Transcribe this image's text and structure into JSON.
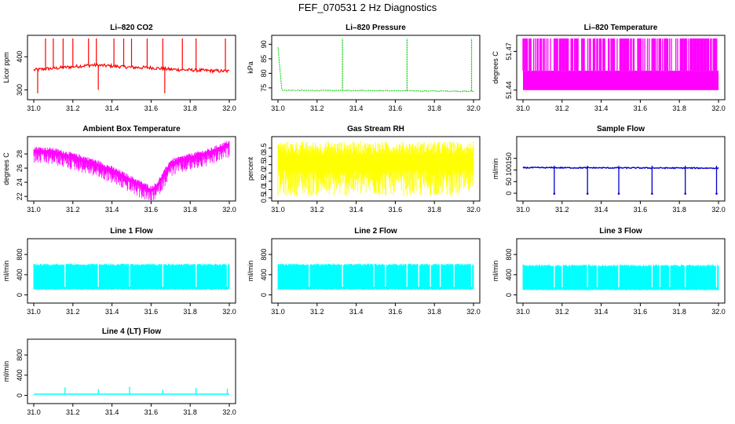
{
  "figure": {
    "title": "FEF_070531  2 Hz Diagnostics"
  },
  "chart_data": [
    {
      "id": "co2",
      "type": "line",
      "title": "Li–820 CO2",
      "xlabel": "",
      "ylabel": "Licor ppm",
      "color": "#ff0000",
      "xlim": [
        31.0,
        32.0
      ],
      "ylim": [
        280,
        455
      ],
      "xticks": [
        31.0,
        31.2,
        31.4,
        31.6,
        31.8,
        32.0
      ],
      "xticklabels": [
        "31.0",
        "31.2",
        "31.4",
        "31.6",
        "31.8",
        "32.0"
      ],
      "yticks": [
        300,
        400
      ],
      "yticklabels": [
        "300",
        "400"
      ],
      "series": [
        {
          "x": [
            31.0,
            31.05,
            31.1,
            31.2,
            31.3,
            31.4,
            31.5,
            31.6,
            31.7,
            31.8,
            31.9,
            32.0
          ],
          "y": [
            360,
            363,
            365,
            370,
            375,
            372,
            368,
            367,
            362,
            360,
            358,
            356
          ]
        }
      ],
      "spikes": [
        [
          31.06,
          455
        ],
        [
          31.1,
          455
        ],
        [
          31.15,
          455
        ],
        [
          31.2,
          455
        ],
        [
          31.28,
          455
        ],
        [
          31.32,
          455
        ],
        [
          31.41,
          455
        ],
        [
          31.46,
          455
        ],
        [
          31.5,
          455
        ],
        [
          31.58,
          455
        ],
        [
          31.66,
          455
        ],
        [
          31.76,
          455
        ],
        [
          31.83,
          455
        ],
        [
          31.98,
          455
        ],
        [
          31.33,
          300
        ],
        [
          31.67,
          290
        ],
        [
          31.02,
          290
        ]
      ]
    },
    {
      "id": "pressure",
      "type": "line",
      "title": "Li–820 Pressure",
      "xlabel": "",
      "ylabel": "kPa",
      "color": "#00cc00",
      "xlim": [
        31.0,
        32.0
      ],
      "ylim": [
        72,
        92
      ],
      "xticks": [
        31.0,
        31.2,
        31.4,
        31.6,
        31.8,
        32.0
      ],
      "xticklabels": [
        "31.0",
        "31.2",
        "31.4",
        "31.6",
        "31.8",
        "32.0"
      ],
      "yticks": [
        75,
        80,
        85,
        90
      ],
      "yticklabels": [
        "75",
        "80",
        "85",
        "90"
      ],
      "series": [
        {
          "x": [
            31.0,
            31.02,
            31.2,
            31.4,
            31.6,
            31.8,
            32.0
          ],
          "y": [
            89,
            74.2,
            74.1,
            74.1,
            74.0,
            73.9,
            73.8
          ]
        }
      ],
      "spikes": [
        [
          31.33,
          92
        ],
        [
          31.66,
          92
        ],
        [
          31.99,
          92
        ]
      ]
    },
    {
      "id": "licor_temp",
      "type": "area",
      "title": "Li–820 Temperature",
      "xlabel": "",
      "ylabel": "degrees C",
      "color": "#ff00ff",
      "xlim": [
        31.0,
        32.0
      ],
      "ylim": [
        51.435,
        51.48
      ],
      "xticks": [
        31.0,
        31.2,
        31.4,
        31.6,
        31.8,
        32.0
      ],
      "xticklabels": [
        "31.0",
        "31.2",
        "31.4",
        "31.6",
        "31.8",
        "32.0"
      ],
      "yticks": [
        51.44,
        51.47
      ],
      "yticklabels": [
        "51.44",
        "51.47"
      ],
      "band": [
        51.44,
        51.455
      ],
      "band_upper": 51.48
    },
    {
      "id": "box_temp",
      "type": "line",
      "title": "Ambient Box Temperature",
      "xlabel": "",
      "ylabel": "degrees C",
      "color": "#ff00ff",
      "xlim": [
        31.0,
        32.0
      ],
      "ylim": [
        21.8,
        30
      ],
      "xticks": [
        31.0,
        31.2,
        31.4,
        31.6,
        31.8,
        32.0
      ],
      "xticklabels": [
        "31.0",
        "31.2",
        "31.4",
        "31.6",
        "31.8",
        "32.0"
      ],
      "yticks": [
        22,
        24,
        26,
        28
      ],
      "yticklabels": [
        "22",
        "24",
        "26",
        "28"
      ],
      "series": [
        {
          "x": [
            31.0,
            31.1,
            31.2,
            31.3,
            31.4,
            31.5,
            31.6,
            31.63,
            31.7,
            31.8,
            31.9,
            32.0
          ],
          "y": [
            28.6,
            28.4,
            27.7,
            26.9,
            25.8,
            24.4,
            23.0,
            23.6,
            26.8,
            27.6,
            28.3,
            29.5
          ]
        }
      ]
    },
    {
      "id": "rh",
      "type": "area",
      "title": "Gas Stream RH",
      "xlabel": "",
      "ylabel": "percent",
      "color": "#ffff00",
      "xlim": [
        31.0,
        32.0
      ],
      "ylim": [
        0.5,
        4.0
      ],
      "xticks": [
        31.0,
        31.2,
        31.4,
        31.6,
        31.8,
        32.0
      ],
      "xticklabels": [
        "31.0",
        "31.2",
        "31.4",
        "31.6",
        "31.8",
        "32.0"
      ],
      "yticks": [
        0.5,
        1.0,
        1.5,
        2.0,
        2.5,
        3.0,
        3.5
      ],
      "yticklabels": [
        "0.5",
        "1.0",
        "1.5",
        "2.0",
        "2.5",
        "3.0",
        "3.5"
      ],
      "band": [
        0.6,
        3.9
      ]
    },
    {
      "id": "sample_flow",
      "type": "line",
      "title": "Sample Flow",
      "xlabel": "",
      "ylabel": "ml/min",
      "color": "#0000cc",
      "xlim": [
        31.0,
        32.0
      ],
      "ylim": [
        -20,
        230
      ],
      "xticks": [
        31.0,
        31.2,
        31.4,
        31.6,
        31.8,
        32.0
      ],
      "xticklabels": [
        "31.0",
        "31.2",
        "31.4",
        "31.6",
        "31.8",
        "32.0"
      ],
      "yticks": [
        0,
        50,
        100,
        150
      ],
      "yticklabels": [
        "0",
        "50",
        "100",
        "150"
      ],
      "series": [
        {
          "x": [
            31.0,
            32.0
          ],
          "y": [
            110,
            108
          ]
        }
      ],
      "dips": [
        31.16,
        31.33,
        31.49,
        31.66,
        31.83,
        31.99
      ]
    },
    {
      "id": "line1",
      "type": "area",
      "title": "Line 1 Flow",
      "xlabel": "",
      "ylabel": "ml/min",
      "color": "#00ffff",
      "xlim": [
        31.0,
        32.0
      ],
      "ylim": [
        -100,
        1050
      ],
      "xticks": [
        31.0,
        31.2,
        31.4,
        31.6,
        31.8,
        32.0
      ],
      "xticklabels": [
        "31.0",
        "31.2",
        "31.4",
        "31.6",
        "31.8",
        "32.0"
      ],
      "yticks": [
        0,
        400,
        800
      ],
      "yticklabels": [
        "0",
        "400",
        "800"
      ],
      "band": [
        120,
        620
      ],
      "gaps": [
        31.16,
        31.33,
        31.49,
        31.66,
        31.83,
        31.99
      ]
    },
    {
      "id": "line2",
      "type": "area",
      "title": "Line 2 Flow",
      "xlabel": "",
      "ylabel": "ml/min",
      "color": "#00ffff",
      "xlim": [
        31.0,
        32.0
      ],
      "ylim": [
        -100,
        1050
      ],
      "xticks": [
        31.0,
        31.2,
        31.4,
        31.6,
        31.8,
        32.0
      ],
      "xticklabels": [
        "31.0",
        "31.2",
        "31.4",
        "31.6",
        "31.8",
        "32.0"
      ],
      "yticks": [
        0,
        400,
        800
      ],
      "yticklabels": [
        "0",
        "400",
        "800"
      ],
      "band": [
        120,
        620
      ],
      "gaps": [
        31.16,
        31.33,
        31.49,
        31.55,
        31.66,
        31.72,
        31.78,
        31.83,
        31.9,
        31.99
      ]
    },
    {
      "id": "line3",
      "type": "area",
      "title": "Line 3 Flow",
      "xlabel": "",
      "ylabel": "ml/min",
      "color": "#00ffff",
      "xlim": [
        31.0,
        32.0
      ],
      "ylim": [
        -100,
        1050
      ],
      "xticks": [
        31.0,
        31.2,
        31.4,
        31.6,
        31.8,
        32.0
      ],
      "xticklabels": [
        "31.0",
        "31.2",
        "31.4",
        "31.6",
        "31.8",
        "32.0"
      ],
      "yticks": [
        0,
        400,
        800
      ],
      "yticklabels": [
        "0",
        "400",
        "800"
      ],
      "band": [
        110,
        600
      ],
      "gaps": [
        31.16,
        31.2,
        31.33,
        31.38,
        31.49,
        31.66,
        31.7,
        31.75,
        31.83,
        31.99
      ]
    },
    {
      "id": "line4",
      "type": "line",
      "title": "Line 4 (LT) Flow",
      "xlabel": "",
      "ylabel": "ml/min",
      "color": "#00ffff",
      "xlim": [
        31.0,
        32.0
      ],
      "ylim": [
        -100,
        1050
      ],
      "xticks": [
        31.0,
        31.2,
        31.4,
        31.6,
        31.8,
        32.0
      ],
      "xticklabels": [
        "31.0",
        "31.2",
        "31.4",
        "31.6",
        "31.8",
        "32.0"
      ],
      "yticks": [
        0,
        400,
        800
      ],
      "yticklabels": [
        "0",
        "400",
        "800"
      ],
      "series": [
        {
          "x": [
            31.0,
            32.0
          ],
          "y": [
            25,
            25
          ]
        }
      ],
      "spikes": [
        [
          31.16,
          160
        ],
        [
          31.33,
          120
        ],
        [
          31.49,
          170
        ],
        [
          31.66,
          110
        ],
        [
          31.83,
          150
        ],
        [
          31.99,
          130
        ]
      ]
    }
  ]
}
